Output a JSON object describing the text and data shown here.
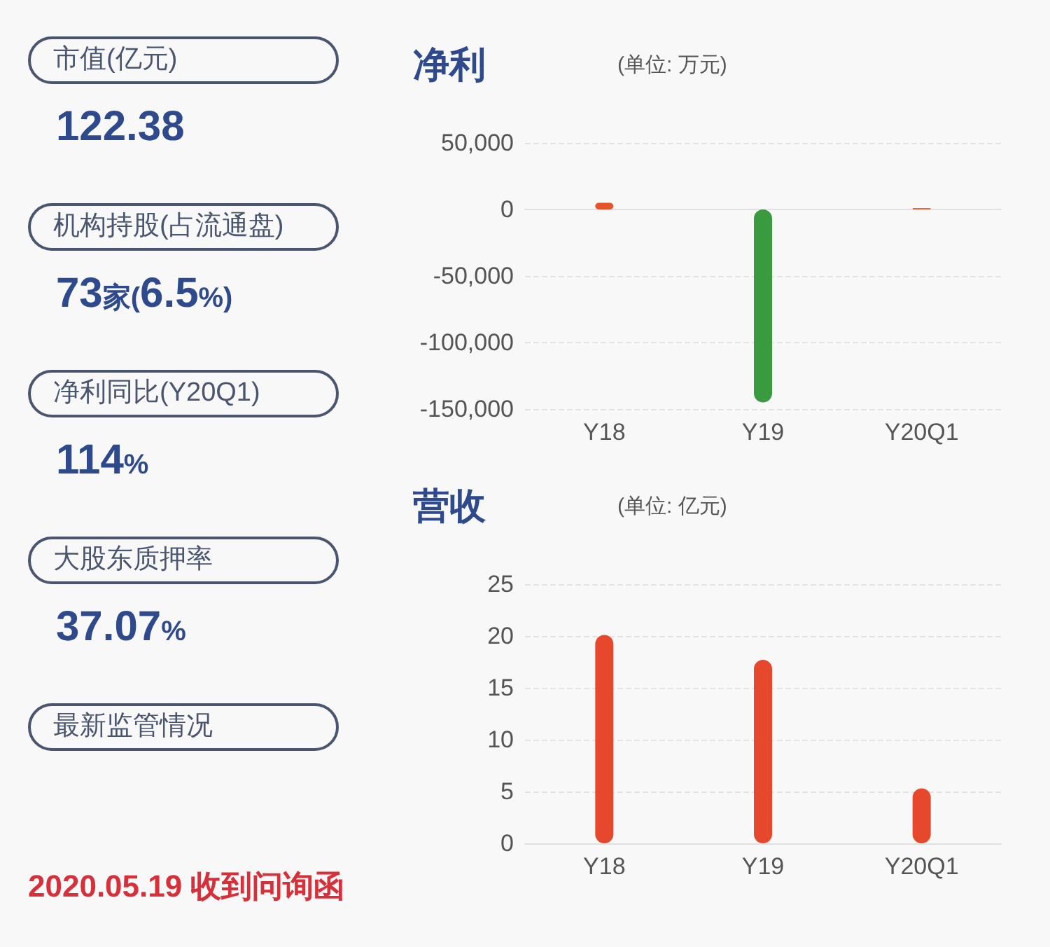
{
  "chart_data": [
    {
      "type": "other",
      "annotations": [
        "市值(亿元)",
        "122.38",
        "机构持股(占流通盘)",
        "73家(6.5%)",
        "净利同比(Y20Q1)",
        "114%",
        "大股东质押率",
        "37.07%",
        "最新监管情况",
        "2020.05.19 收到问询函"
      ]
    },
    {
      "type": "bar",
      "title": "净利",
      "subtitle": "(单位: 万元)",
      "categories": [
        "Y18",
        "Y19",
        "Y20Q1"
      ],
      "values": [
        5000,
        -145000,
        1000
      ],
      "colors": [
        "#e8542a",
        "#3a9a40",
        "#e8683a"
      ],
      "ylim": [
        -150000,
        50000
      ],
      "yticks": [
        {
          "value": -150000,
          "label": "-150,000"
        },
        {
          "value": -100000,
          "label": "-100,000"
        },
        {
          "value": -50000,
          "label": "-50,000"
        },
        0,
        {
          "value": 50000,
          "label": "50,000"
        }
      ],
      "grid": "y"
    },
    {
      "type": "bar",
      "title": "营收",
      "subtitle": "(单位: 亿元)",
      "categories": [
        "Y18",
        "Y19",
        "Y20Q1"
      ],
      "values": [
        20.1,
        17.7,
        5.3
      ],
      "color": "#e5482c",
      "ylim": [
        0,
        25
      ],
      "yticks": [
        0,
        5,
        10,
        15,
        20,
        25
      ],
      "grid": "y"
    }
  ]
}
